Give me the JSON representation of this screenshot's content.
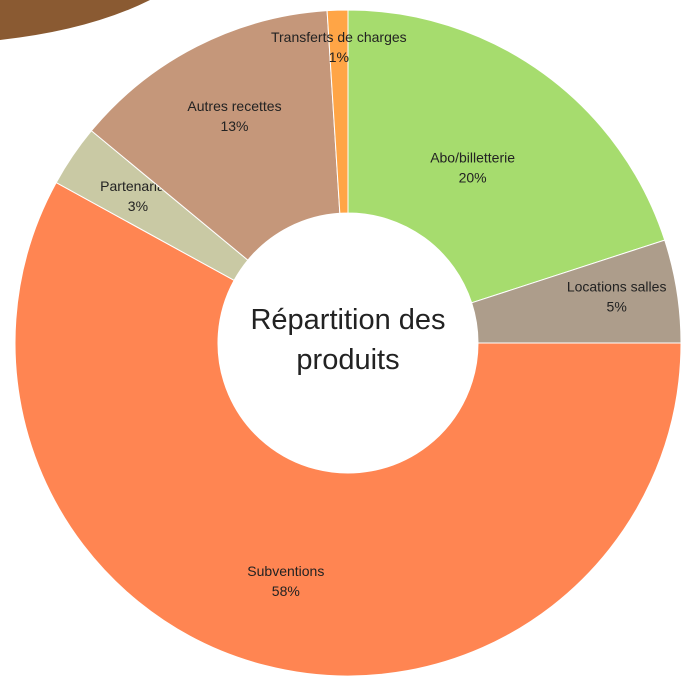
{
  "chart_data": {
    "type": "donut",
    "title": "Répartition des produits",
    "categories": [
      "Abo/billetterie",
      "Locations salles",
      "Subventions",
      "Partenariats",
      "Autres recettes",
      "Transferts de charges"
    ],
    "values": [
      20,
      5,
      58,
      3,
      13,
      1
    ],
    "value_labels": [
      "20%",
      "5%",
      "58%",
      "3%",
      "13%",
      "1%"
    ],
    "colors": [
      "#a6dc6e",
      "#ad9d8b",
      "#ff8552",
      "#c9c9a4",
      "#c5977a",
      "#ffa546"
    ]
  }
}
